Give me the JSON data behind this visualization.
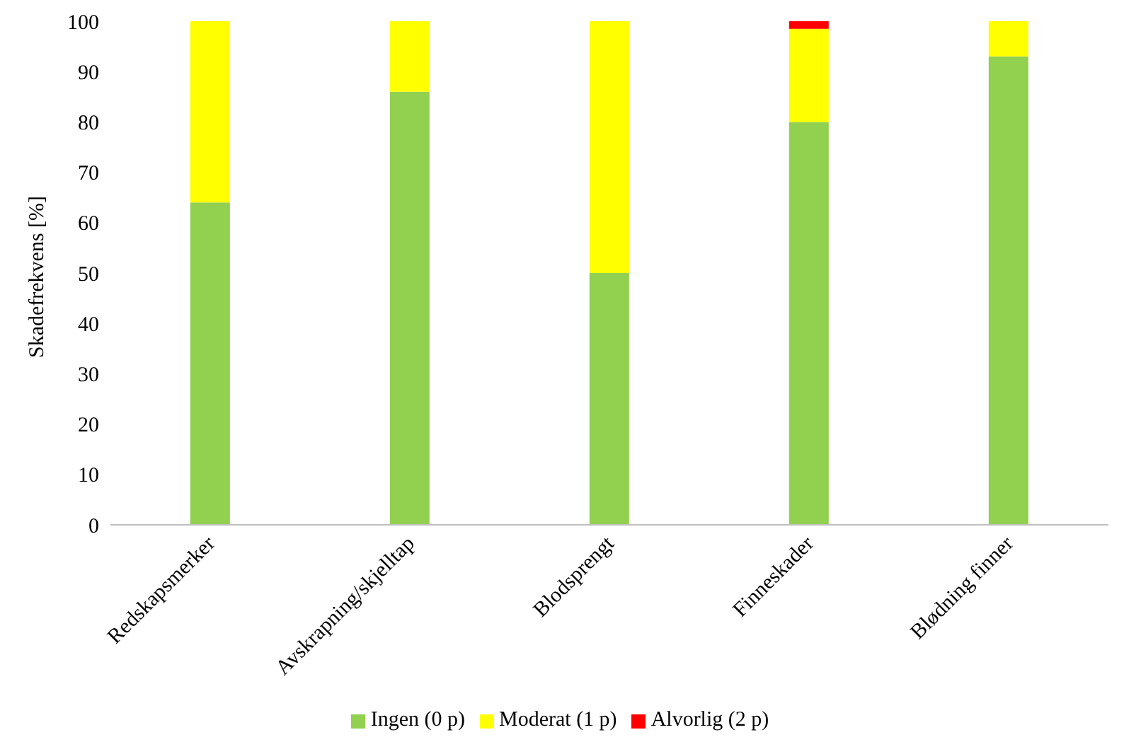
{
  "chart_data": {
    "type": "bar",
    "stacked": true,
    "ylabel": "Skadefrekvens [%]",
    "categories": [
      "Redskapsmerker",
      "Avskrapning/skjelltap",
      "Blodsprengt",
      "Finneskader",
      "Blødning finner"
    ],
    "series": [
      {
        "name": "Ingen (0 p)",
        "color": "#92d050",
        "values": [
          64,
          86,
          50,
          80,
          93
        ]
      },
      {
        "name": "Moderat (1 p)",
        "color": "#ffff00",
        "values": [
          36,
          14,
          50,
          18.5,
          7
        ]
      },
      {
        "name": "Alvorlig (2 p)",
        "color": "#ff0000",
        "values": [
          0,
          0,
          0,
          1.5,
          0
        ]
      }
    ],
    "ylim": [
      0,
      100
    ],
    "yticks": [
      0,
      10,
      20,
      30,
      40,
      50,
      60,
      70,
      80,
      90,
      100
    ],
    "grid": false,
    "legend": "bottom"
  }
}
